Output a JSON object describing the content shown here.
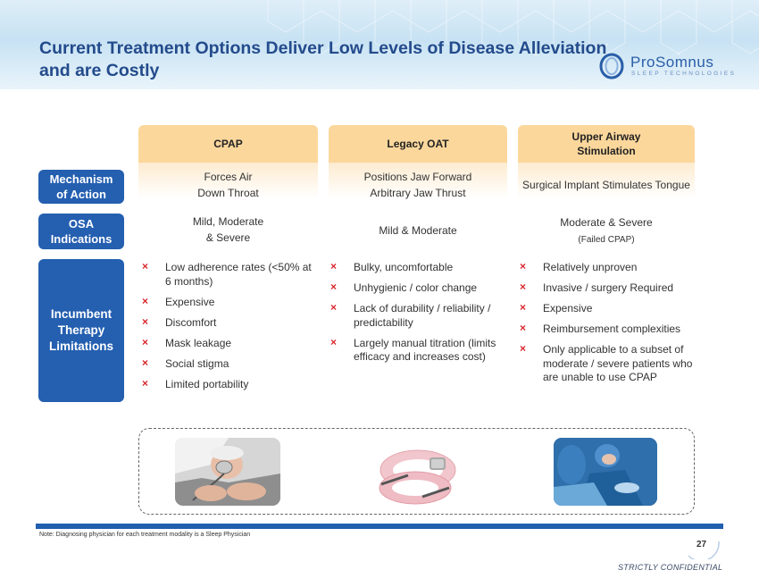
{
  "slide": {
    "title": "Current Treatment Options Deliver Low Levels of Disease Alleviation and are Costly"
  },
  "logo": {
    "name": "ProSomnus",
    "tagline": "SLEEP TECHNOLOGIES"
  },
  "columns": [
    {
      "header": "CPAP",
      "mechanism": [
        "Forces Air",
        "Down Throat"
      ],
      "indications": [
        "Mild, Moderate",
        "& Severe"
      ],
      "limitations": [
        "Low adherence rates (<50% at 6 months)",
        "Expensive",
        "Discomfort",
        "Mask leakage",
        "Social stigma",
        "Limited portability"
      ]
    },
    {
      "header": "Legacy OAT",
      "mechanism": [
        "Positions Jaw Forward",
        "Arbitrary Jaw Thrust"
      ],
      "indications": [
        "Mild & Moderate"
      ],
      "limitations": [
        "Bulky, uncomfortable",
        "Unhygienic / color change",
        "Lack of durability / reliability / predictability",
        "Largely manual titration (limits efficacy and increases cost)"
      ]
    },
    {
      "header_line1": "Upper Airway",
      "header_line2": "Stimulation",
      "mechanism": [
        "Surgical Implant Stimulates Tongue"
      ],
      "indications": [
        "Moderate & Severe"
      ],
      "indications_note": "(Failed CPAP)",
      "limitations": [
        "Relatively unproven",
        "Invasive / surgery Required",
        "Expensive",
        "Reimbursement complexities",
        "Only applicable to a subset of moderate / severe patients who are unable to use CPAP"
      ]
    }
  ],
  "row_labels": {
    "mechanism_l1": "Mechanism",
    "mechanism_l2": "of Action",
    "osa_l1": "OSA",
    "osa_l2": "Indications",
    "lim_l1": "Incumbent",
    "lim_l2": "Therapy",
    "lim_l3": "Limitations"
  },
  "bullet_glyph": "×",
  "footer": {
    "note": "Note: Diagnosing physician for each treatment modality is a Sleep Physician",
    "page_number": "27",
    "confidential": "STRICTLY CONFIDENTIAL"
  },
  "colors": {
    "title": "#234b8c",
    "row_label_bg": "#245fb0",
    "column_header_bg": "#fcd79c",
    "bullet": "#d9262c",
    "bottom_bar": "#1f5fae"
  }
}
